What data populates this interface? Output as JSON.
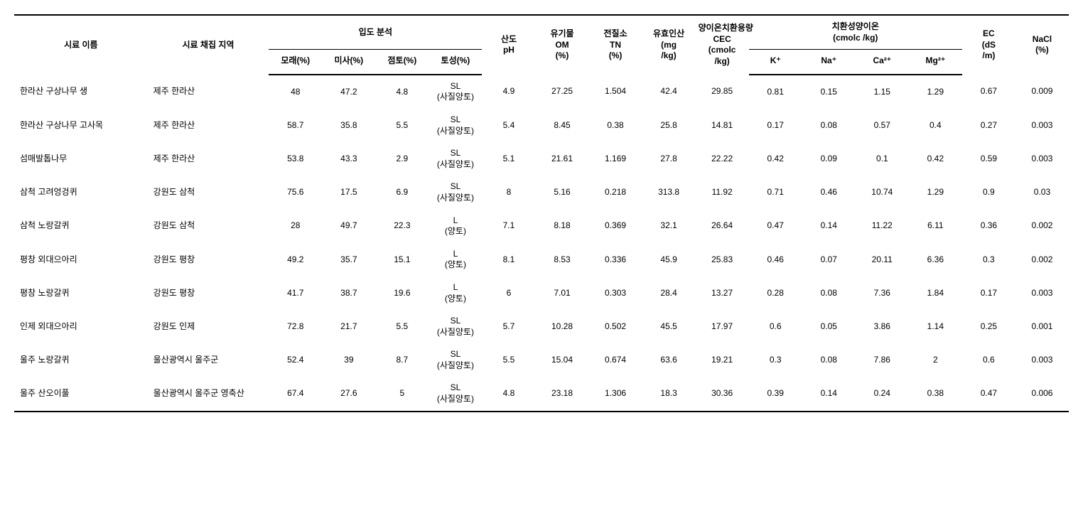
{
  "headers": {
    "sample_name": "시료 이름",
    "region": "시료 채집 지역",
    "particle_group": "입도 분석",
    "sand": "모래(%)",
    "silt": "미사(%)",
    "clay": "점토(%)",
    "texture": "토성(%)",
    "ph": "산도\npH",
    "om": "유기물\nOM\n(%)",
    "tn": "전질소\nTN\n(%)",
    "ap": "유효인산\n(mg\n/kg)",
    "cec": "양이온치환용량\nCEC\n(cmolc\n/kg)",
    "cation_group": "치환성양이온\n(cmolc /kg)",
    "k": "K⁺",
    "na": "Na⁺",
    "ca": "Ca²⁺",
    "mg": "Mg²⁺",
    "ec": "EC\n(dS\n/m)",
    "nacl": "NaCl\n(%)"
  },
  "rows": [
    {
      "name": "한라산 구상나무 생",
      "region": "제주 한라산",
      "sand": "48",
      "silt": "47.2",
      "clay": "4.8",
      "texture": "SL\n(사질양토)",
      "ph": "4.9",
      "om": "27.25",
      "tn": "1.504",
      "ap": "42.4",
      "cec": "29.85",
      "k": "0.81",
      "na": "0.15",
      "ca": "1.15",
      "mg": "1.29",
      "ec": "0.67",
      "nacl": "0.009"
    },
    {
      "name": "한라산 구상나무 고사목",
      "region": "제주 한라산",
      "sand": "58.7",
      "silt": "35.8",
      "clay": "5.5",
      "texture": "SL\n(사질양토)",
      "ph": "5.4",
      "om": "8.45",
      "tn": "0.38",
      "ap": "25.8",
      "cec": "14.81",
      "k": "0.17",
      "na": "0.08",
      "ca": "0.57",
      "mg": "0.4",
      "ec": "0.27",
      "nacl": "0.003"
    },
    {
      "name": "섬매발톱나무",
      "region": "제주 한라산",
      "sand": "53.8",
      "silt": "43.3",
      "clay": "2.9",
      "texture": "SL\n(사질양토)",
      "ph": "5.1",
      "om": "21.61",
      "tn": "1.169",
      "ap": "27.8",
      "cec": "22.22",
      "k": "0.42",
      "na": "0.09",
      "ca": "0.1",
      "mg": "0.42",
      "ec": "0.59",
      "nacl": "0.003"
    },
    {
      "name": "삼척 고려엉겅퀴",
      "region": "강원도 삼척",
      "sand": "75.6",
      "silt": "17.5",
      "clay": "6.9",
      "texture": "SL\n(사질양토)",
      "ph": "8",
      "om": "5.16",
      "tn": "0.218",
      "ap": "313.8",
      "cec": "11.92",
      "k": "0.71",
      "na": "0.46",
      "ca": "10.74",
      "mg": "1.29",
      "ec": "0.9",
      "nacl": "0.03"
    },
    {
      "name": "삼척 노랑갈퀴",
      "region": "강원도 삼척",
      "sand": "28",
      "silt": "49.7",
      "clay": "22.3",
      "texture": "L\n(양토)",
      "ph": "7.1",
      "om": "8.18",
      "tn": "0.369",
      "ap": "32.1",
      "cec": "26.64",
      "k": "0.47",
      "na": "0.14",
      "ca": "11.22",
      "mg": "6.11",
      "ec": "0.36",
      "nacl": "0.002"
    },
    {
      "name": "평창 외대으아리",
      "region": "강원도 평창",
      "sand": "49.2",
      "silt": "35.7",
      "clay": "15.1",
      "texture": "L\n(양토)",
      "ph": "8.1",
      "om": "8.53",
      "tn": "0.336",
      "ap": "45.9",
      "cec": "25.83",
      "k": "0.46",
      "na": "0.07",
      "ca": "20.11",
      "mg": "6.36",
      "ec": "0.3",
      "nacl": "0.002"
    },
    {
      "name": "평창 노랑갈퀴",
      "region": "강원도 평창",
      "sand": "41.7",
      "silt": "38.7",
      "clay": "19.6",
      "texture": "L\n(양토)",
      "ph": "6",
      "om": "7.01",
      "tn": "0.303",
      "ap": "28.4",
      "cec": "13.27",
      "k": "0.28",
      "na": "0.08",
      "ca": "7.36",
      "mg": "1.84",
      "ec": "0.17",
      "nacl": "0.003"
    },
    {
      "name": "인제 외대으아리",
      "region": "강원도 인제",
      "sand": "72.8",
      "silt": "21.7",
      "clay": "5.5",
      "texture": "SL\n(사질양토)",
      "ph": "5.7",
      "om": "10.28",
      "tn": "0.502",
      "ap": "45.5",
      "cec": "17.97",
      "k": "0.6",
      "na": "0.05",
      "ca": "3.86",
      "mg": "1.14",
      "ec": "0.25",
      "nacl": "0.001"
    },
    {
      "name": "울주 노랑갈퀴",
      "region": "울산광역시 울주군",
      "sand": "52.4",
      "silt": "39",
      "clay": "8.7",
      "texture": "SL\n(사질양토)",
      "ph": "5.5",
      "om": "15.04",
      "tn": "0.674",
      "ap": "63.6",
      "cec": "19.21",
      "k": "0.3",
      "na": "0.08",
      "ca": "7.86",
      "mg": "2",
      "ec": "0.6",
      "nacl": "0.003"
    },
    {
      "name": "울주 산오이풀",
      "region": "울산광역시 울주군 영축산",
      "sand": "67.4",
      "silt": "27.6",
      "clay": "5",
      "texture": "SL\n(사질양토)",
      "ph": "4.8",
      "om": "23.18",
      "tn": "1.306",
      "ap": "18.3",
      "cec": "30.36",
      "k": "0.39",
      "na": "0.14",
      "ca": "0.24",
      "mg": "0.38",
      "ec": "0.47",
      "nacl": "0.006"
    }
  ]
}
